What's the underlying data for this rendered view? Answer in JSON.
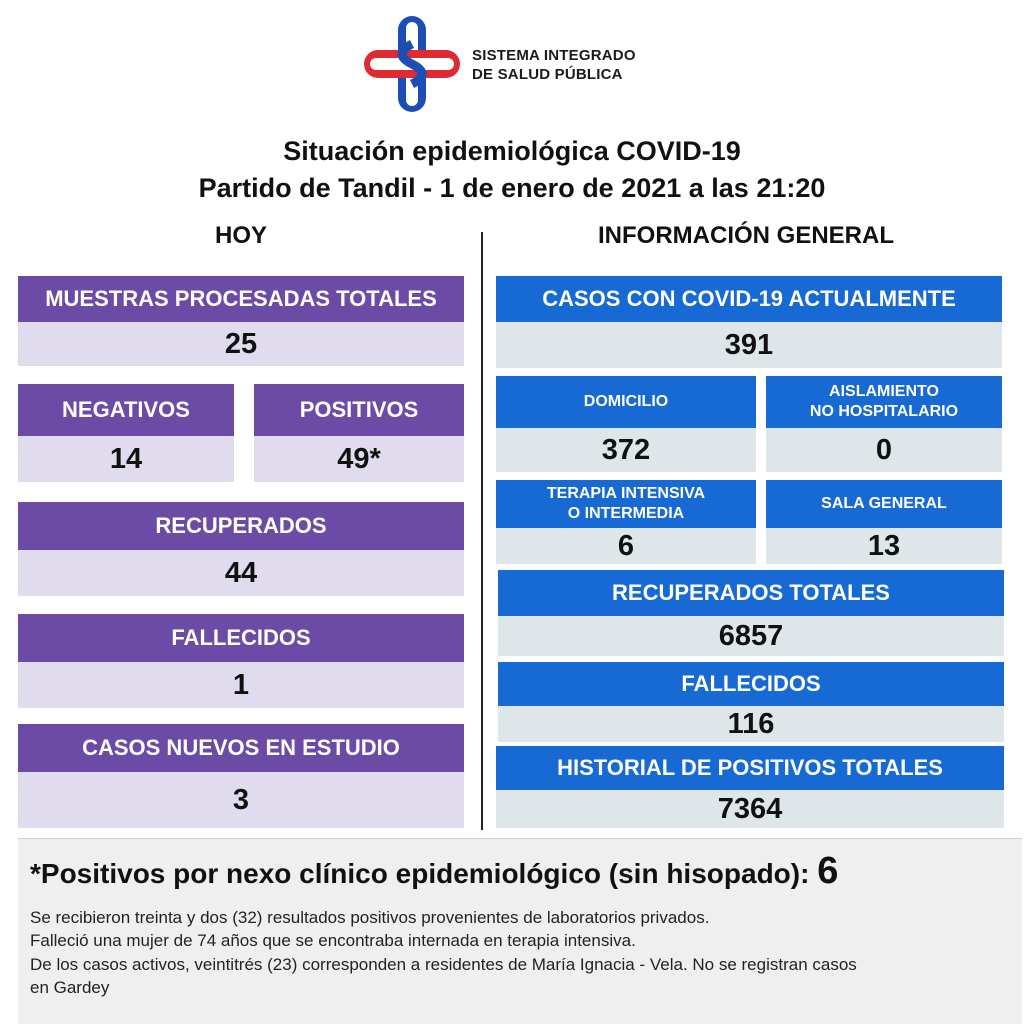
{
  "header": {
    "org_line1": "SISTEMA INTEGRADO",
    "org_line2": "DE SALUD PÚBLICA",
    "title_line1": "Situación epidemiológica COVID-19",
    "title_line2": "Partido de Tandil - 1 de enero de 2021 a las 21:20"
  },
  "colors": {
    "purple": "#6c4ba6",
    "purple_light": "#e0dcee",
    "blue": "#1769d3",
    "blue_light": "#dfe6ea",
    "logo_red": "#e02a32",
    "logo_blue": "#1b4fb5"
  },
  "hoy": {
    "heading": "HOY",
    "muestras": {
      "label": "MUESTRAS PROCESADAS TOTALES",
      "value": "25"
    },
    "negativos": {
      "label": "NEGATIVOS",
      "value": "14"
    },
    "positivos": {
      "label": "POSITIVOS",
      "value": "49*"
    },
    "recuperados": {
      "label": "RECUPERADOS",
      "value": "44"
    },
    "fallecidos": {
      "label": "FALLECIDOS",
      "value": "1"
    },
    "casos_nuevos": {
      "label": "CASOS NUEVOS EN ESTUDIO",
      "value": "3"
    }
  },
  "general": {
    "heading": "INFORMACIÓN GENERAL",
    "casos_actuales": {
      "label": "CASOS CON COVID-19 ACTUALMENTE",
      "value": "391"
    },
    "domicilio": {
      "label": "DOMICILIO",
      "value": "372"
    },
    "aislamiento": {
      "label_line1": "AISLAMIENTO",
      "label_line2": "NO HOSPITALARIO",
      "value": "0"
    },
    "terapia": {
      "label_line1": "TERAPIA INTENSIVA",
      "label_line2": "O INTERMEDIA",
      "value": "6"
    },
    "sala_general": {
      "label": "SALA GENERAL",
      "value": "13"
    },
    "recuperados_totales": {
      "label": "RECUPERADOS TOTALES",
      "value": "6857"
    },
    "fallecidos": {
      "label": "FALLECIDOS",
      "value": "116"
    },
    "historial": {
      "label": "HISTORIAL DE POSITIVOS TOTALES",
      "value": "7364"
    }
  },
  "notes": {
    "nexo_label": "*Positivos por nexo clínico epidemiológico (sin hisopado):",
    "nexo_value": "6",
    "line1": "Se recibieron treinta y dos (32) resultados positivos provenientes de laboratorios privados.",
    "line2": "Falleció una mujer de 74 años que se encontraba internada en terapia intensiva.",
    "line3": "De los casos activos, veintitrés (23) corresponden a residentes de María Ignacia - Vela. No se registran casos",
    "line4": "en Gardey"
  }
}
